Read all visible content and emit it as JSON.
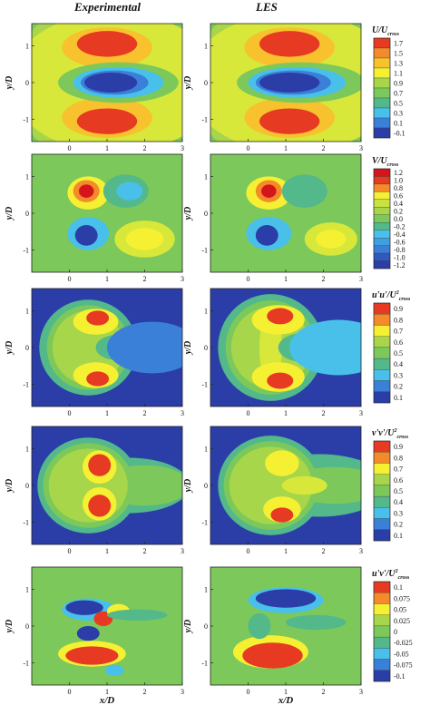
{
  "headers": {
    "left": "Experimental",
    "right": "LES"
  },
  "axis_text": {
    "ylabel": "y/D",
    "xlabel": "x/D"
  },
  "colors": {
    "palette": [
      "#2b3ea8",
      "#3a7fd8",
      "#49c0ea",
      "#53b88a",
      "#7cc85a",
      "#a8d64a",
      "#d8e83a",
      "#f6f033",
      "#f7c22e",
      "#f48a2a",
      "#e63a22",
      "#d4161c"
    ]
  },
  "chart_data": [
    {
      "type": "heatmap",
      "row": 1,
      "variable": "U/U_cross",
      "legend_title": {
        "main": "U/U",
        "sub": "cross"
      },
      "levels": [
        "1.7",
        "1.5",
        "1.3",
        "1.1",
        "0.9",
        "0.7",
        "0.5",
        "0.3",
        "0.1",
        "-0.1"
      ],
      "level_colors": [
        "#e63a22",
        "#f48a2a",
        "#f7c22e",
        "#f6f033",
        "#a8d64a",
        "#7cc85a",
        "#53b88a",
        "#49c0ea",
        "#3a7fd8",
        "#2b3ea8"
      ],
      "x_ticks": [
        "0",
        "1",
        "2",
        "3"
      ],
      "y_ticks": [
        "1",
        "0",
        "-1"
      ],
      "xlim": [
        -1,
        3
      ],
      "ylim": [
        -1.6,
        1.6
      ],
      "panels": [
        "Experimental",
        "LES"
      ]
    },
    {
      "type": "heatmap",
      "row": 2,
      "variable": "V/U_cross",
      "legend_title": {
        "main": "V/U",
        "sub": "cross"
      },
      "levels": [
        "1.2",
        "1.0",
        "0.8",
        "0.6",
        "0.4",
        "0.2",
        "0.0",
        "-0.2",
        "-0.4",
        "-0.6",
        "-0.8",
        "-1.0",
        "-1.2"
      ],
      "level_colors": [
        "#d4161c",
        "#e63a22",
        "#f48a2a",
        "#f6f033",
        "#c9e23f",
        "#a8d64a",
        "#7cc85a",
        "#53b88a",
        "#49c0ea",
        "#3f9fe0",
        "#3a7fd8",
        "#3258bd",
        "#2b3ea8"
      ],
      "x_ticks": [
        "0",
        "1",
        "2",
        "3"
      ],
      "y_ticks": [
        "1",
        "0",
        "-1"
      ],
      "xlim": [
        -1,
        3
      ],
      "ylim": [
        -1.6,
        1.6
      ],
      "panels": [
        "Experimental",
        "LES"
      ]
    },
    {
      "type": "heatmap",
      "row": 3,
      "variable": "u'u'/U^2_cross",
      "legend_title": {
        "main": "u'u'/U",
        "sub": "cross",
        "sup": "2"
      },
      "levels": [
        "0.9",
        "0.8",
        "0.7",
        "0.6",
        "0.5",
        "0.4",
        "0.3",
        "0.2",
        "0.1"
      ],
      "level_colors": [
        "#e63a22",
        "#f48a2a",
        "#f6f033",
        "#a8d64a",
        "#7cc85a",
        "#53b88a",
        "#49c0ea",
        "#3a7fd8",
        "#2b3ea8"
      ],
      "x_ticks": [
        "0",
        "1",
        "2",
        "3"
      ],
      "y_ticks": [
        "1",
        "0",
        "-1"
      ],
      "xlim": [
        -1,
        3
      ],
      "ylim": [
        -1.6,
        1.6
      ],
      "panels": [
        "Experimental",
        "LES"
      ]
    },
    {
      "type": "heatmap",
      "row": 4,
      "variable": "v'v'/U^2_cross",
      "legend_title": {
        "main": "v'v'/U",
        "sub": "cross",
        "sup": "2"
      },
      "levels": [
        "0.9",
        "0.8",
        "0.7",
        "0.6",
        "0.5",
        "0.4",
        "0.3",
        "0.2",
        "0.1"
      ],
      "level_colors": [
        "#e63a22",
        "#f48a2a",
        "#f6f033",
        "#a8d64a",
        "#7cc85a",
        "#53b88a",
        "#49c0ea",
        "#3a7fd8",
        "#2b3ea8"
      ],
      "x_ticks": [
        "0",
        "1",
        "2",
        "3"
      ],
      "y_ticks": [
        "1",
        "0",
        "-1"
      ],
      "xlim": [
        -1,
        3
      ],
      "ylim": [
        -1.6,
        1.6
      ],
      "panels": [
        "Experimental",
        "LES"
      ]
    },
    {
      "type": "heatmap",
      "row": 5,
      "variable": "u'v'/U^2_cross",
      "legend_title": {
        "main": "u'v'/U",
        "sub": "cross",
        "sup": "2"
      },
      "levels": [
        "0.1",
        "0.075",
        "0.05",
        "0.025",
        "0",
        "-0.025",
        "-0.05",
        "-0.075",
        "-0.1"
      ],
      "level_colors": [
        "#e63a22",
        "#f48a2a",
        "#f6f033",
        "#a8d64a",
        "#7cc85a",
        "#53b88a",
        "#49c0ea",
        "#3a7fd8",
        "#2b3ea8"
      ],
      "x_ticks": [
        "0",
        "1",
        "2",
        "3"
      ],
      "y_ticks": [
        "1",
        "0",
        "-1"
      ],
      "xlim": [
        -1,
        3
      ],
      "ylim": [
        -1.6,
        1.6
      ],
      "panels": [
        "Experimental",
        "LES"
      ]
    }
  ]
}
